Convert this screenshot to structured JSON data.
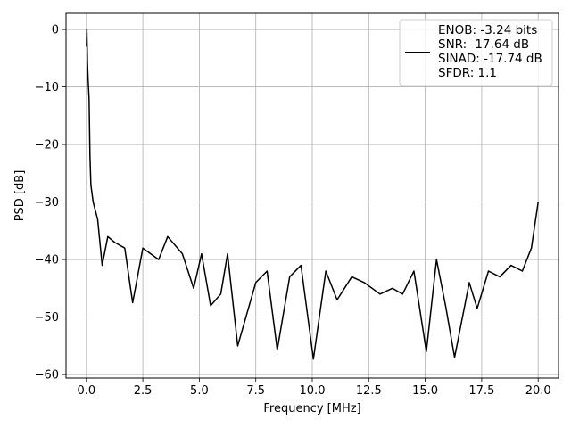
{
  "chart_data": {
    "type": "line",
    "title": "",
    "xlabel": "Frequency [MHz]",
    "ylabel": "PSD [dB]",
    "xlim": [
      -0.9,
      20.9
    ],
    "ylim": [
      -60.6,
      2.8
    ],
    "xticks": [
      0.0,
      2.5,
      5.0,
      7.5,
      10.0,
      12.5,
      15.0,
      17.5,
      20.0
    ],
    "xtick_labels": [
      "0.0",
      "2.5",
      "5.0",
      "7.5",
      "10.0",
      "12.5",
      "15.0",
      "17.5",
      "20.0"
    ],
    "yticks": [
      0,
      -10,
      -20,
      -30,
      -40,
      -50,
      -60
    ],
    "ytick_labels": [
      "0",
      "−10",
      "−20",
      "−30",
      "−40",
      "−50",
      "−60"
    ],
    "grid": true,
    "legend_placement": "upper-right",
    "legend_lines": [
      "ENOB: -3.24 bits",
      "SNR: -17.64 dB",
      "SINAD: -17.74 dB",
      "SFDR: 1.1"
    ],
    "series_color": "#000000",
    "series": [
      {
        "values_desc": "noise-like PSD trace",
        "x": [
          0.0,
          0.02,
          0.05,
          0.08,
          0.12,
          0.16,
          0.2,
          0.3,
          0.5,
          0.7,
          0.95,
          1.25,
          1.7,
          2.05,
          2.5,
          3.2,
          3.6,
          4.25,
          4.75,
          5.1,
          5.5,
          5.95,
          6.25,
          6.7,
          7.5,
          8.0,
          8.45,
          9.0,
          9.5,
          10.05,
          10.6,
          11.1,
          11.75,
          12.3,
          13.0,
          13.55,
          14.0,
          14.5,
          15.05,
          15.5,
          15.9,
          16.3,
          16.95,
          17.3,
          17.8,
          18.3,
          18.8,
          19.3,
          19.7,
          20.0
        ],
        "values": [
          -3.0,
          0.0,
          -6.0,
          -9.0,
          -12.0,
          -22.0,
          -27.0,
          -30.0,
          -33.0,
          -41.0,
          -36.0,
          -37.0,
          -38.0,
          -47.5,
          -38.0,
          -40.0,
          -36.0,
          -39.0,
          -45.0,
          -39.0,
          -48.0,
          -46.0,
          -39.0,
          -55.0,
          -44.0,
          -42.0,
          -55.7,
          -43.0,
          -41.0,
          -57.3,
          -42.0,
          -47.0,
          -43.0,
          -44.0,
          -46.0,
          -45.0,
          -46.0,
          -42.0,
          -56.0,
          -40.0,
          -48.0,
          -57.0,
          -44.0,
          -48.5,
          -42.0,
          -43.0,
          -41.0,
          -42.0,
          -38.0,
          -30.0
        ]
      }
    ]
  }
}
